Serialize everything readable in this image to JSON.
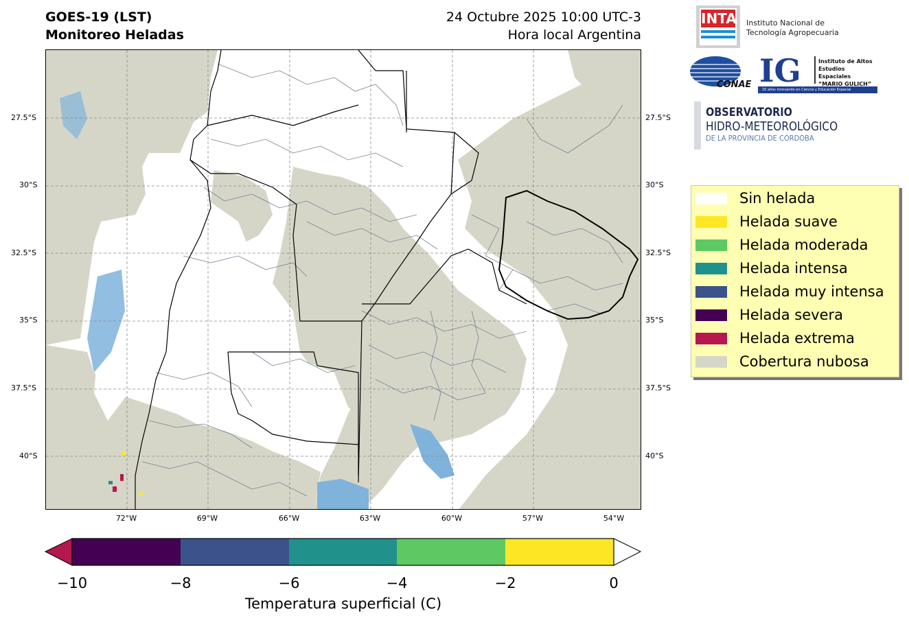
{
  "header": {
    "title_line1": "GOES-19 (LST)",
    "title_line2": "Monitoreo Heladas",
    "date_line1": "24 Octubre 2025 10:00 UTC-3",
    "date_line2": "Hora local Argentina"
  },
  "map": {
    "lat_labels_left": [
      "27.5°S",
      "30°S",
      "32.5°S",
      "35°S",
      "37.5°S",
      "40°S"
    ],
    "lat_labels_right": [
      "27.5°S",
      "30°S",
      "32.5°S",
      "35°S",
      "37.5°S",
      "40°S"
    ],
    "lon_labels": [
      "72°W",
      "69°W",
      "66°W",
      "63°W",
      "60°W",
      "57°W",
      "54°W"
    ],
    "colors": {
      "cloud": "#d6d6c8",
      "clear": "#ffffff",
      "water": "#7fb3dc",
      "border": "#000000",
      "dept": "#6f8092"
    }
  },
  "logos": {
    "inta_mark": "INTA",
    "inta_line1": "Instituto Nacional de",
    "inta_line2": "Tecnología Agropecuaria",
    "conae_mark": "CONAE",
    "ig_mark": "IG",
    "ig_line1": "Instituto de Altos",
    "ig_line2": "Estudios Espaciales",
    "ig_line3": "“MARIO GULICH”",
    "ig_footer": "20 años innovando en Ciencia y Educación Espacial",
    "obs_line1": "OBSERVATORIO",
    "obs_line2": "HIDRO-METEOROLÓGICO",
    "obs_line3": "DE LA PROVINCIA DE CÓRDOBA"
  },
  "legend": {
    "items": [
      {
        "label": "Sin helada",
        "color": "#ffffff"
      },
      {
        "label": "Helada suave",
        "color": "#fde725"
      },
      {
        "label": "Helada moderada",
        "color": "#5ec962"
      },
      {
        "label": "Helada intensa",
        "color": "#21918c"
      },
      {
        "label": "Helada muy intensa",
        "color": "#3b528b"
      },
      {
        "label": "Helada severa",
        "color": "#440154"
      },
      {
        "label": "Helada extrema",
        "color": "#b5184e"
      },
      {
        "label": "Cobertura nubosa",
        "color": "#d6d6c8"
      }
    ]
  },
  "colorbar": {
    "ticks": [
      "−10",
      "−8",
      "−6",
      "−4",
      "−2",
      "0"
    ],
    "segments": [
      "#440154",
      "#3b528b",
      "#21918c",
      "#5ec962",
      "#fde725"
    ],
    "under_color": "#b5184e",
    "over_color": "#ffffff",
    "label": "Temperatura superficial (C)"
  }
}
